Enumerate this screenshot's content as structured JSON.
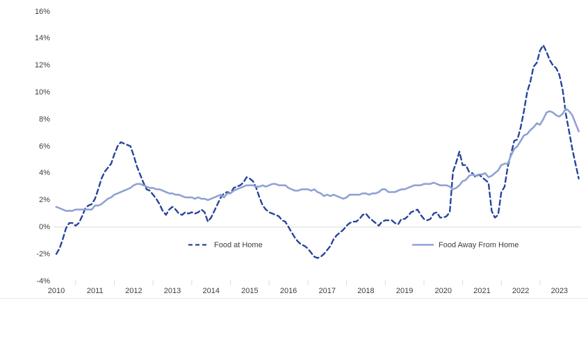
{
  "page": {
    "background": "#ffffff"
  },
  "chart_data": {
    "type": "line",
    "title": "",
    "xlabel": "",
    "ylabel": "",
    "x_start": "2010-01",
    "x_freq": "monthly",
    "x_end": "2023-07",
    "x_year_labels": [
      "2010",
      "2011",
      "2012",
      "2013",
      "2014",
      "2015",
      "2016",
      "2017",
      "2018",
      "2019",
      "2020",
      "2021",
      "2022",
      "2023"
    ],
    "y_tick_labels": [
      "16%",
      "14%",
      "12%",
      "10%",
      "8%",
      "6%",
      "4%",
      "2%",
      "0%",
      "-2%",
      "-4%"
    ],
    "y_tick_values": [
      16,
      14,
      12,
      10,
      8,
      6,
      4,
      2,
      0,
      -2,
      -4
    ],
    "ylim": [
      -4,
      16
    ],
    "unit": "percent",
    "grid": "zero-line-only",
    "legend_position": "inside-bottom",
    "axis_color": "#d9d9d9",
    "zero_line_color": "#d9d9d9",
    "label_color": "#3d3d3d",
    "series": [
      {
        "name": "Food at Home",
        "style": "dashed",
        "color": "#27449B",
        "values": [
          -2.0,
          -1.6,
          -0.9,
          -0.1,
          0.3,
          0.3,
          0.1,
          0.3,
          0.8,
          1.4,
          1.6,
          1.7,
          2.1,
          2.8,
          3.6,
          4.1,
          4.4,
          4.7,
          5.4,
          6.0,
          6.3,
          6.2,
          6.1,
          6.0,
          5.3,
          4.5,
          3.9,
          3.3,
          2.8,
          2.7,
          2.4,
          2.1,
          1.7,
          1.2,
          0.9,
          1.3,
          1.5,
          1.3,
          1.0,
          0.9,
          1.1,
          1.0,
          1.1,
          1.0,
          1.1,
          1.3,
          1.1,
          0.4,
          0.7,
          1.2,
          1.7,
          2.2,
          2.5,
          2.6,
          2.5,
          2.9,
          3.0,
          3.1,
          3.3,
          3.7,
          3.6,
          3.4,
          2.9,
          2.2,
          1.6,
          1.3,
          1.1,
          1.0,
          0.9,
          0.8,
          0.5,
          0.4,
          0.0,
          -0.4,
          -0.8,
          -1.1,
          -1.3,
          -1.4,
          -1.6,
          -1.9,
          -2.2,
          -2.3,
          -2.2,
          -2.0,
          -1.7,
          -1.4,
          -0.9,
          -0.6,
          -0.4,
          -0.2,
          0.1,
          0.3,
          0.4,
          0.4,
          0.6,
          0.9,
          1.0,
          0.7,
          0.5,
          0.3,
          0.1,
          0.4,
          0.5,
          0.5,
          0.5,
          0.3,
          0.2,
          0.6,
          0.6,
          0.8,
          1.1,
          1.2,
          1.3,
          0.9,
          0.6,
          0.5,
          0.6,
          1.0,
          1.1,
          0.7,
          0.7,
          0.8,
          1.1,
          4.1,
          4.8,
          5.6,
          4.6,
          4.6,
          4.1,
          4.0,
          3.7,
          3.9,
          3.7,
          3.5,
          3.3,
          1.2,
          0.7,
          0.9,
          2.6,
          3.0,
          4.5,
          5.4,
          6.4,
          6.5,
          7.4,
          8.6,
          10.0,
          10.8,
          11.9,
          12.2,
          13.1,
          13.5,
          13.0,
          12.4,
          12.0,
          11.8,
          11.3,
          10.2,
          8.4,
          7.1,
          5.8,
          4.7,
          3.6
        ]
      },
      {
        "name": "Food Away From Home",
        "style": "solid",
        "color": "#8FA2D4",
        "values": [
          1.5,
          1.4,
          1.3,
          1.2,
          1.2,
          1.2,
          1.3,
          1.3,
          1.3,
          1.3,
          1.3,
          1.3,
          1.6,
          1.6,
          1.7,
          1.9,
          2.1,
          2.2,
          2.4,
          2.5,
          2.6,
          2.7,
          2.8,
          2.9,
          3.1,
          3.2,
          3.2,
          3.1,
          3.0,
          2.9,
          2.9,
          2.8,
          2.8,
          2.7,
          2.6,
          2.5,
          2.5,
          2.4,
          2.4,
          2.3,
          2.2,
          2.2,
          2.2,
          2.1,
          2.2,
          2.1,
          2.1,
          2.0,
          2.1,
          2.2,
          2.3,
          2.4,
          2.2,
          2.5,
          2.5,
          2.7,
          2.8,
          2.9,
          3.0,
          3.1,
          3.1,
          3.1,
          3.0,
          3.0,
          3.1,
          3.0,
          3.1,
          3.2,
          3.2,
          3.1,
          3.1,
          3.1,
          2.9,
          2.8,
          2.7,
          2.7,
          2.8,
          2.8,
          2.8,
          2.7,
          2.8,
          2.6,
          2.5,
          2.3,
          2.4,
          2.3,
          2.4,
          2.3,
          2.2,
          2.1,
          2.2,
          2.4,
          2.4,
          2.4,
          2.4,
          2.5,
          2.5,
          2.4,
          2.5,
          2.5,
          2.6,
          2.8,
          2.8,
          2.6,
          2.6,
          2.6,
          2.7,
          2.8,
          2.8,
          2.9,
          3.0,
          3.1,
          3.1,
          3.1,
          3.2,
          3.2,
          3.2,
          3.3,
          3.2,
          3.1,
          3.1,
          3.1,
          3.0,
          2.8,
          2.9,
          3.1,
          3.4,
          3.5,
          3.8,
          3.9,
          3.8,
          3.9,
          3.9,
          4.0,
          3.7,
          3.8,
          4.0,
          4.2,
          4.6,
          4.7,
          4.7,
          5.3,
          5.8,
          6.0,
          6.4,
          6.8,
          6.9,
          7.2,
          7.4,
          7.7,
          7.6,
          8.0,
          8.5,
          8.6,
          8.5,
          8.3,
          8.2,
          8.4,
          8.8,
          8.6,
          8.3,
          7.7,
          7.1
        ]
      }
    ]
  }
}
